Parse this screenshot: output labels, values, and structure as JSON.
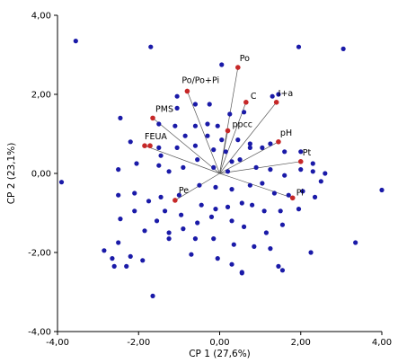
{
  "chart_data": {
    "type": "scatter",
    "title": "",
    "xlabel": "CP 1 (27,6%)",
    "ylabel": "CP 2 (23,1%)",
    "xlim": [
      -4,
      4
    ],
    "ylim": [
      -4,
      4
    ],
    "x_ticks": [
      "-4,00",
      "-2,00",
      "0,00",
      "2,00",
      "4,00"
    ],
    "y_ticks": [
      "4,00",
      "2,00",
      "0,00",
      "-2,00",
      "-4,00"
    ],
    "grid": false,
    "colors": {
      "observation": "#1a1aa8",
      "variable": "#c62828",
      "vector": "#555555",
      "axis": "#000000"
    },
    "observations": [
      [
        -3.55,
        3.35
      ],
      [
        -3.9,
        -0.22
      ],
      [
        -1.7,
        3.2
      ],
      [
        1.95,
        3.2
      ],
      [
        3.05,
        3.15
      ],
      [
        0.05,
        2.75
      ],
      [
        -1.05,
        1.95
      ],
      [
        -1.05,
        1.65
      ],
      [
        -0.6,
        1.75
      ],
      [
        -0.25,
        1.75
      ],
      [
        1.3,
        1.95
      ],
      [
        1.45,
        2.0
      ],
      [
        0.25,
        1.5
      ],
      [
        0.6,
        1.55
      ],
      [
        -0.6,
        1.2
      ],
      [
        -1.1,
        1.2
      ],
      [
        -1.5,
        1.25
      ],
      [
        -0.3,
        1.25
      ],
      [
        -0.05,
        1.2
      ],
      [
        -0.85,
        0.95
      ],
      [
        -0.3,
        0.95
      ],
      [
        0.05,
        0.85
      ],
      [
        0.45,
        0.85
      ],
      [
        0.75,
        0.75
      ],
      [
        1.05,
        0.65
      ],
      [
        -2.45,
        1.4
      ],
      [
        -2.2,
        0.8
      ],
      [
        -1.5,
        0.65
      ],
      [
        -1.45,
        0.45
      ],
      [
        -1.05,
        0.65
      ],
      [
        -0.6,
        0.7
      ],
      [
        -0.15,
        0.6
      ],
      [
        0.15,
        0.55
      ],
      [
        0.3,
        0.3
      ],
      [
        0.75,
        0.65
      ],
      [
        1.25,
        0.75
      ],
      [
        1.6,
        0.55
      ],
      [
        2.0,
        0.55
      ],
      [
        2.3,
        0.25
      ],
      [
        2.3,
        0.05
      ],
      [
        2.0,
        0.1
      ],
      [
        2.6,
        0.0
      ],
      [
        -2.5,
        0.1
      ],
      [
        -2.05,
        0.25
      ],
      [
        -1.5,
        0.2
      ],
      [
        -1.25,
        0.05
      ],
      [
        -0.9,
        0.15
      ],
      [
        -0.55,
        0.35
      ],
      [
        -0.15,
        0.15
      ],
      [
        0.2,
        0.05
      ],
      [
        0.5,
        0.35
      ],
      [
        0.9,
        0.15
      ],
      [
        1.25,
        0.1
      ],
      [
        1.6,
        -0.05
      ],
      [
        2.5,
        -0.2
      ],
      [
        -2.5,
        -0.55
      ],
      [
        -2.1,
        -0.5
      ],
      [
        -1.75,
        -0.7
      ],
      [
        -1.45,
        -0.6
      ],
      [
        -1.0,
        -0.55
      ],
      [
        -0.5,
        -0.3
      ],
      [
        -0.1,
        -0.35
      ],
      [
        0.3,
        -0.4
      ],
      [
        0.75,
        -0.3
      ],
      [
        1.05,
        -0.25
      ],
      [
        1.35,
        -0.5
      ],
      [
        1.7,
        -0.55
      ],
      [
        2.05,
        -0.45
      ],
      [
        -2.45,
        -1.15
      ],
      [
        -2.1,
        -0.95
      ],
      [
        -1.35,
        -0.95
      ],
      [
        -0.95,
        -1.05
      ],
      [
        -0.45,
        -0.8
      ],
      [
        -0.1,
        -0.9
      ],
      [
        0.2,
        -0.85
      ],
      [
        0.55,
        -0.75
      ],
      [
        0.8,
        -0.8
      ],
      [
        1.1,
        -0.95
      ],
      [
        1.5,
        -0.95
      ],
      [
        1.95,
        -0.9
      ],
      [
        2.35,
        -0.6
      ],
      [
        -1.85,
        -1.45
      ],
      [
        -1.25,
        -1.5
      ],
      [
        -0.9,
        -1.4
      ],
      [
        -0.55,
        -1.25
      ],
      [
        -0.2,
        -1.1
      ],
      [
        0.3,
        -1.2
      ],
      [
        0.6,
        -1.35
      ],
      [
        1.15,
        -1.5
      ],
      [
        1.55,
        -1.3
      ],
      [
        -1.55,
        -1.2
      ],
      [
        -2.5,
        -1.75
      ],
      [
        -2.85,
        -1.95
      ],
      [
        -2.65,
        -2.15
      ],
      [
        -2.2,
        -2.1
      ],
      [
        -1.9,
        -2.2
      ],
      [
        -0.6,
        -1.65
      ],
      [
        -0.15,
        -1.65
      ],
      [
        0.35,
        -1.8
      ],
      [
        0.85,
        -1.85
      ],
      [
        1.25,
        -1.9
      ],
      [
        -1.25,
        -1.65
      ],
      [
        -0.7,
        -2.05
      ],
      [
        -0.05,
        -2.15
      ],
      [
        -2.6,
        -2.35
      ],
      [
        -2.3,
        -2.35
      ],
      [
        0.3,
        -2.3
      ],
      [
        1.45,
        -2.35
      ],
      [
        2.25,
        -2.0
      ],
      [
        0.55,
        -2.5
      ],
      [
        1.55,
        -2.45
      ],
      [
        -1.65,
        -3.1
      ],
      [
        3.35,
        -1.75
      ],
      [
        4.0,
        -0.42
      ],
      [
        0.55,
        -2.52
      ]
    ],
    "variables": [
      {
        "name": "Po",
        "x": 0.45,
        "y": 2.68
      },
      {
        "name": "Po/Po+Pi",
        "x": -0.8,
        "y": 2.08
      },
      {
        "name": "C",
        "x": 0.65,
        "y": 1.8
      },
      {
        "name": "I+a",
        "x": 1.4,
        "y": 1.8
      },
      {
        "name": "PMS",
        "x": -1.65,
        "y": 1.4
      },
      {
        "name": "ppcc",
        "x": 0.2,
        "y": 1.08
      },
      {
        "name": "pH",
        "x": 1.45,
        "y": 0.8
      },
      {
        "name": "FEUA",
        "x": -1.85,
        "y": 0.7
      },
      {
        "name": "Pt",
        "x": 2.0,
        "y": 0.3
      },
      {
        "name": "Pi",
        "x": 1.8,
        "y": -0.62
      },
      {
        "name": "Pe",
        "x": -1.1,
        "y": -0.68
      }
    ]
  }
}
